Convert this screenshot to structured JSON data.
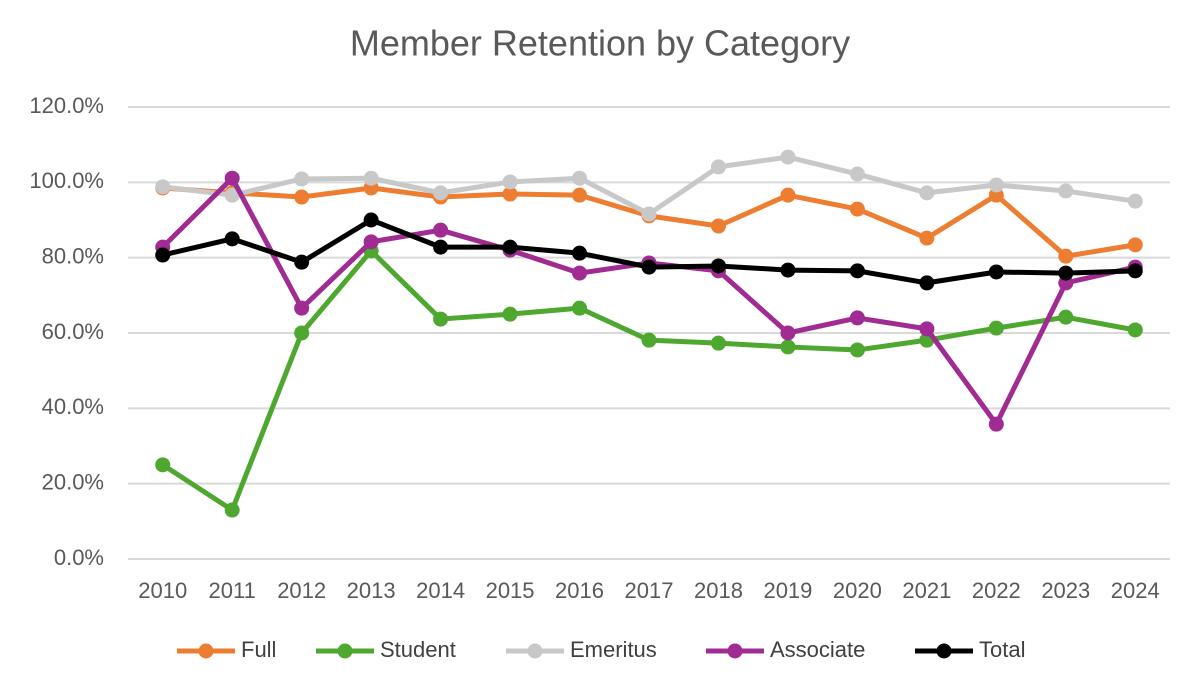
{
  "chart_data": {
    "type": "line",
    "title": "Member Retention by Category",
    "categories": [
      "2010",
      "2011",
      "2012",
      "2013",
      "2014",
      "2015",
      "2016",
      "2017",
      "2018",
      "2019",
      "2020",
      "2021",
      "2022",
      "2023",
      "2024"
    ],
    "series": [
      {
        "name": "Full",
        "color": "#ed7d31",
        "values": [
          98.5,
          97.2,
          96.1,
          98.5,
          96.1,
          96.9,
          96.6,
          91.1,
          88.4,
          96.6,
          92.9,
          85.2,
          96.6,
          80.4,
          83.4
        ]
      },
      {
        "name": "Student",
        "color": "#4ea72e",
        "values": [
          25,
          13,
          60,
          81.8,
          63.7,
          65,
          66.6,
          58.1,
          57.3,
          56.3,
          55.5,
          58.1,
          61.3,
          64.2,
          60.8
        ]
      },
      {
        "name": "Emeritus",
        "color": "#c8c8c8",
        "values": [
          98.8,
          96.6,
          100.9,
          101.1,
          97.2,
          100.1,
          101.1,
          91.6,
          104.1,
          106.7,
          102.2,
          97.2,
          99.3,
          97.7,
          95
        ]
      },
      {
        "name": "Associate",
        "color": "#a02b93",
        "values": [
          82.8,
          101.1,
          66.6,
          84.2,
          87.3,
          82,
          75.9,
          78.6,
          76.5,
          60,
          64,
          61.1,
          35.8,
          73.3,
          77.5
        ]
      },
      {
        "name": "Total",
        "color": "#000000",
        "values": [
          80.7,
          85,
          78.8,
          90,
          82.8,
          82.8,
          81.2,
          77.5,
          77.8,
          76.7,
          76.5,
          73.3,
          76.2,
          75.9,
          76.5
        ]
      }
    ],
    "ylim": [
      0,
      120
    ],
    "yticks": [
      {
        "value": 0,
        "label": "0.0%"
      },
      {
        "value": 20,
        "label": "20.0%"
      },
      {
        "value": 40,
        "label": "40.0%"
      },
      {
        "value": 60,
        "label": "60.0%"
      },
      {
        "value": 80,
        "label": "80.0%"
      },
      {
        "value": 100,
        "label": "100.0%"
      },
      {
        "value": 120,
        "label": "120.0%"
      }
    ],
    "grid": true,
    "legend": "bottom"
  }
}
